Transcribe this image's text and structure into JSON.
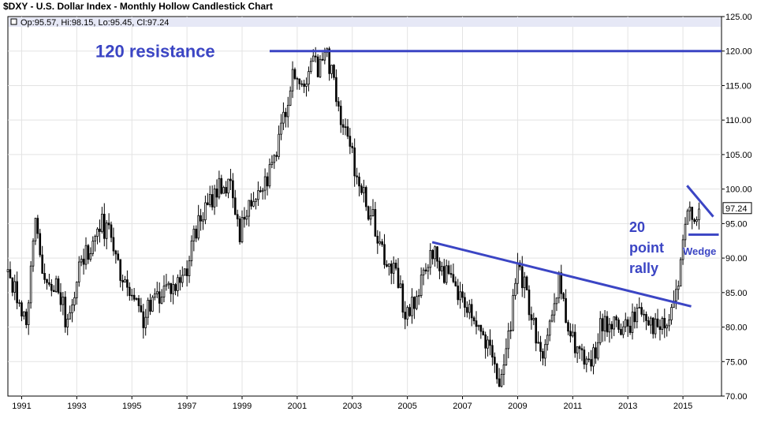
{
  "chart_data": {
    "type": "candlestick",
    "title": "$DXY - U.S. Dollar Index - Monthly Hollow Candlestick Chart",
    "ohlc_readout": "Op:95.57, Hi:98.15, Lo:95.45, Cl:97.24",
    "last_value_label": "97.24",
    "y_axis": {
      "min": 70,
      "max": 125,
      "position": "right",
      "tick_labels": [
        "125.00",
        "120.00",
        "115.00",
        "110.00",
        "105.00",
        "100.00",
        "95.00",
        "90.00",
        "85.00",
        "80.00",
        "75.00",
        "70.00"
      ]
    },
    "x_axis": {
      "min": 1990.5,
      "max": 2016.4,
      "position": "bottom",
      "tick_labels": [
        "1991",
        "1993",
        "1995",
        "1997",
        "1999",
        "2001",
        "2003",
        "2005",
        "2007",
        "2009",
        "2011",
        "2013",
        "2015"
      ]
    },
    "grid": true,
    "price_path": [
      [
        1990.5,
        88
      ],
      [
        1990.9,
        84
      ],
      [
        1991.2,
        81
      ],
      [
        1991.5,
        96
      ],
      [
        1991.9,
        85
      ],
      [
        1992.3,
        87
      ],
      [
        1992.7,
        79
      ],
      [
        1993.0,
        88
      ],
      [
        1993.3,
        90
      ],
      [
        1993.6,
        93
      ],
      [
        1993.9,
        95
      ],
      [
        1994.2,
        93
      ],
      [
        1994.6,
        87
      ],
      [
        1995.0,
        84
      ],
      [
        1995.4,
        81
      ],
      [
        1995.8,
        84
      ],
      [
        1996.2,
        86
      ],
      [
        1996.6,
        86
      ],
      [
        1997.0,
        89
      ],
      [
        1997.4,
        95
      ],
      [
        1997.8,
        98
      ],
      [
        1998.2,
        101
      ],
      [
        1998.6,
        100
      ],
      [
        1998.9,
        93
      ],
      [
        1999.2,
        97
      ],
      [
        1999.6,
        101
      ],
      [
        2000.0,
        102
      ],
      [
        2000.4,
        108
      ],
      [
        2000.8,
        116
      ],
      [
        2001.2,
        115
      ],
      [
        2001.5,
        119
      ],
      [
        2001.8,
        117
      ],
      [
        2002.1,
        119
      ],
      [
        2002.5,
        112
      ],
      [
        2002.9,
        106
      ],
      [
        2003.3,
        100
      ],
      [
        2003.8,
        95
      ],
      [
        2004.2,
        89
      ],
      [
        2004.6,
        88
      ],
      [
        2004.95,
        81
      ],
      [
        2005.3,
        84
      ],
      [
        2005.7,
        88
      ],
      [
        2005.9,
        91
      ],
      [
        2006.3,
        88
      ],
      [
        2006.8,
        85
      ],
      [
        2007.2,
        83
      ],
      [
        2007.6,
        80
      ],
      [
        2008.0,
        76
      ],
      [
        2008.3,
        72
      ],
      [
        2008.6,
        76
      ],
      [
        2008.8,
        82
      ],
      [
        2009.0,
        88
      ],
      [
        2009.2,
        87
      ],
      [
        2009.6,
        80
      ],
      [
        2009.9,
        76
      ],
      [
        2010.3,
        81
      ],
      [
        2010.5,
        87
      ],
      [
        2010.8,
        80
      ],
      [
        2011.0,
        78
      ],
      [
        2011.3,
        76
      ],
      [
        2011.5,
        74
      ],
      [
        2011.8,
        76
      ],
      [
        2012.0,
        80
      ],
      [
        2012.4,
        81
      ],
      [
        2012.7,
        80
      ],
      [
        2013.0,
        80
      ],
      [
        2013.4,
        83
      ],
      [
        2013.7,
        82
      ],
      [
        2014.0,
        80
      ],
      [
        2014.4,
        80
      ],
      [
        2014.7,
        84
      ],
      [
        2014.9,
        88
      ],
      [
        2015.1,
        95
      ],
      [
        2015.25,
        98
      ],
      [
        2015.45,
        96
      ],
      [
        2015.6,
        97.24
      ]
    ],
    "annotations": {
      "resistance_label": "120 resistance",
      "rally_label_lines": [
        "20",
        "point",
        "rally"
      ],
      "wedge_label": "Wedge"
    },
    "annotation_lines": [
      {
        "name": "resistance-line",
        "x1": 2000.0,
        "y1": 120,
        "x2": 2016.4,
        "y2": 120
      },
      {
        "name": "trend-line",
        "x1": 2005.9,
        "y1": 92.3,
        "x2": 2015.3,
        "y2": 83.0
      },
      {
        "name": "wedge-upper-line",
        "x1": 2015.15,
        "y1": 100.5,
        "x2": 2016.1,
        "y2": 96.0
      },
      {
        "name": "wedge-lower-line",
        "x1": 2015.2,
        "y1": 93.4,
        "x2": 2016.3,
        "y2": 93.4
      }
    ],
    "colors": {
      "candle": "#000000",
      "annotation": "#3b45c4",
      "info_bar": "#e6e8f6"
    }
  }
}
